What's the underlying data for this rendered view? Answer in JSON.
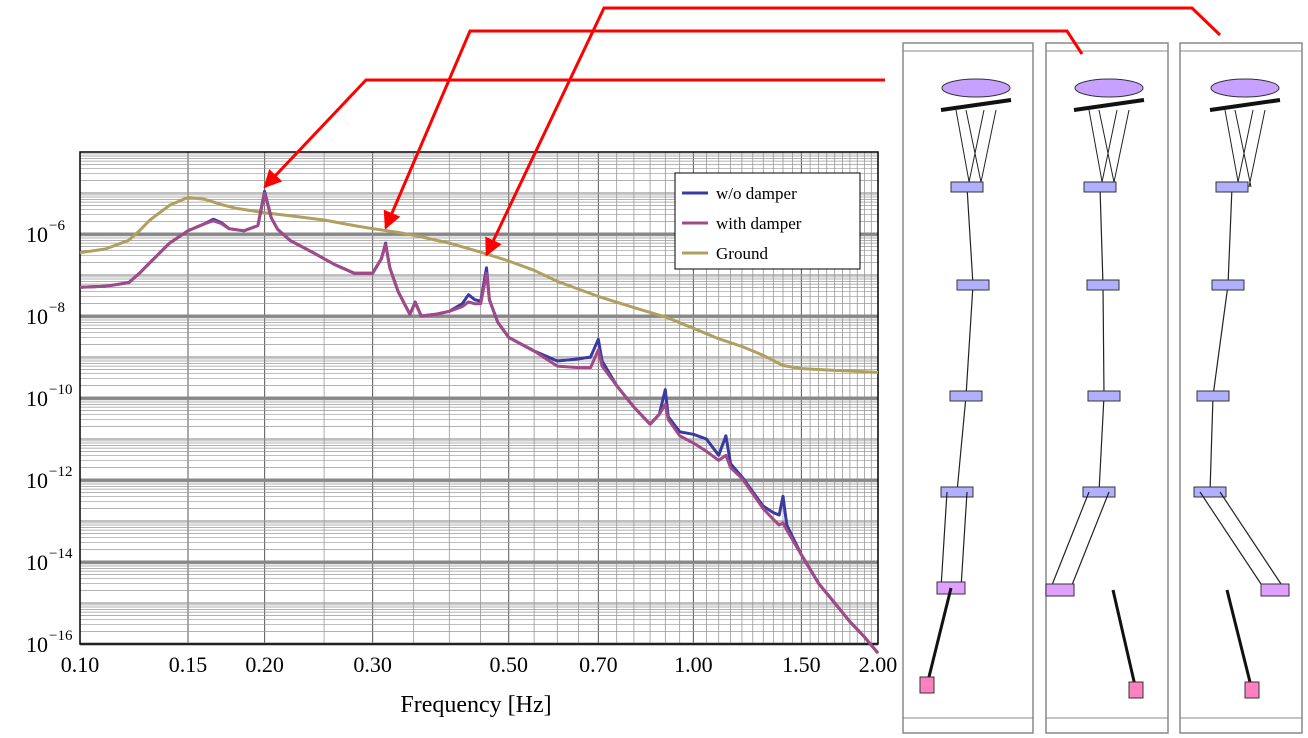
{
  "chart_data": {
    "type": "line",
    "title": "",
    "xlabel": "Frequency [Hz]",
    "ylabel": "",
    "x_scale": "log",
    "y_scale": "log",
    "xlim": [
      0.1,
      2.0
    ],
    "ylim": [
      1e-16,
      0.0001
    ],
    "grid": true,
    "legend_position": "top-right",
    "x_ticks": [
      {
        "value": 0.1,
        "label": "0.10"
      },
      {
        "value": 0.15,
        "label": "0.15"
      },
      {
        "value": 0.2,
        "label": "0.20"
      },
      {
        "value": 0.3,
        "label": "0.30"
      },
      {
        "value": 0.5,
        "label": "0.50"
      },
      {
        "value": 0.7,
        "label": "0.70"
      },
      {
        "value": 1.0,
        "label": "1.00"
      },
      {
        "value": 1.5,
        "label": "1.50"
      },
      {
        "value": 2.0,
        "label": "2.00"
      }
    ],
    "y_ticks": [
      {
        "value": 1e-06,
        "base": "10",
        "exp": "−6"
      },
      {
        "value": 1e-08,
        "base": "10",
        "exp": "−8"
      },
      {
        "value": 1e-10,
        "base": "10",
        "exp": "−10"
      },
      {
        "value": 1e-12,
        "base": "10",
        "exp": "−12"
      },
      {
        "value": 1e-14,
        "base": "10",
        "exp": "−14"
      },
      {
        "value": 1e-16,
        "base": "10",
        "exp": "−16"
      }
    ],
    "series": [
      {
        "name": "Ground",
        "color": "#b0a060",
        "points": [
          [
            0.1,
            3.5e-07
          ],
          [
            0.11,
            4.3e-07
          ],
          [
            0.12,
            7e-07
          ],
          [
            0.125,
            1.2e-06
          ],
          [
            0.13,
            2.2e-06
          ],
          [
            0.14,
            5e-06
          ],
          [
            0.15,
            7.8e-06
          ],
          [
            0.16,
            7e-06
          ],
          [
            0.17,
            5.2e-06
          ],
          [
            0.18,
            4.2e-06
          ],
          [
            0.2,
            3.3e-06
          ],
          [
            0.22,
            2.8e-06
          ],
          [
            0.25,
            2.2e-06
          ],
          [
            0.28,
            1.6e-06
          ],
          [
            0.3,
            1.35e-06
          ],
          [
            0.33,
            1.1e-06
          ],
          [
            0.36,
            8.5e-07
          ],
          [
            0.4,
            6e-07
          ],
          [
            0.45,
            3.6e-07
          ],
          [
            0.5,
            2.2e-07
          ],
          [
            0.55,
            1.3e-07
          ],
          [
            0.6,
            7e-08
          ],
          [
            0.7,
            3e-08
          ],
          [
            0.8,
            1.6e-08
          ],
          [
            0.9,
            9.5e-09
          ],
          [
            1.0,
            5e-09
          ],
          [
            1.1,
            2.8e-09
          ],
          [
            1.2,
            1.8e-09
          ],
          [
            1.3,
            1.1e-09
          ],
          [
            1.4,
            6.2e-10
          ],
          [
            1.5,
            5.2e-10
          ],
          [
            1.7,
            4.7e-10
          ],
          [
            2.0,
            4.2e-10
          ]
        ]
      },
      {
        "name": "w/o damper",
        "color": "#3a3aa0",
        "points": [
          [
            0.1,
            5e-08
          ],
          [
            0.11,
            5.3e-08
          ],
          [
            0.12,
            6.5e-08
          ],
          [
            0.125,
            1.1e-07
          ],
          [
            0.13,
            2e-07
          ],
          [
            0.14,
            6e-07
          ],
          [
            0.15,
            1.2e-06
          ],
          [
            0.16,
            1.8e-06
          ],
          [
            0.165,
            2.3e-06
          ],
          [
            0.17,
            1.9e-06
          ],
          [
            0.175,
            1.35e-06
          ],
          [
            0.185,
            1.2e-06
          ],
          [
            0.195,
            1.6e-06
          ],
          [
            0.2,
            1.1e-05
          ],
          [
            0.205,
            2.5e-06
          ],
          [
            0.21,
            1.3e-06
          ],
          [
            0.22,
            7e-07
          ],
          [
            0.24,
            3.5e-07
          ],
          [
            0.26,
            1.8e-07
          ],
          [
            0.28,
            1.1e-07
          ],
          [
            0.3,
            1.1e-07
          ],
          [
            0.31,
            2.5e-07
          ],
          [
            0.315,
            6e-07
          ],
          [
            0.32,
            1.5e-07
          ],
          [
            0.33,
            4e-08
          ],
          [
            0.345,
            1.1e-08
          ],
          [
            0.352,
            2.2e-08
          ],
          [
            0.36,
            1e-08
          ],
          [
            0.38,
            1.1e-08
          ],
          [
            0.4,
            1.3e-08
          ],
          [
            0.42,
            2e-08
          ],
          [
            0.43,
            3.3e-08
          ],
          [
            0.44,
            2.5e-08
          ],
          [
            0.45,
            2.3e-08
          ],
          [
            0.46,
            1.5e-07
          ],
          [
            0.465,
            2.5e-08
          ],
          [
            0.48,
            7e-09
          ],
          [
            0.5,
            3e-09
          ],
          [
            0.55,
            1.4e-09
          ],
          [
            0.6,
            8e-10
          ],
          [
            0.65,
            9e-10
          ],
          [
            0.68,
            1e-09
          ],
          [
            0.7,
            2.7e-09
          ],
          [
            0.71,
            8e-10
          ],
          [
            0.75,
            2e-10
          ],
          [
            0.8,
            6e-11
          ],
          [
            0.85,
            2.3e-11
          ],
          [
            0.88,
            4e-11
          ],
          [
            0.9,
            1.6e-10
          ],
          [
            0.91,
            3.5e-11
          ],
          [
            0.95,
            1.5e-11
          ],
          [
            1.0,
            1.3e-11
          ],
          [
            1.05,
            1e-11
          ],
          [
            1.1,
            4e-12
          ],
          [
            1.13,
            1.2e-11
          ],
          [
            1.15,
            2.5e-12
          ],
          [
            1.2,
            1.2e-12
          ],
          [
            1.3,
            2.3e-13
          ],
          [
            1.35,
            1.6e-13
          ],
          [
            1.38,
            1.4e-13
          ],
          [
            1.4,
            4e-13
          ],
          [
            1.42,
            8e-14
          ],
          [
            1.5,
            1.5e-14
          ],
          [
            1.6,
            3e-15
          ],
          [
            1.7,
            1e-15
          ],
          [
            1.8,
            3.5e-16
          ],
          [
            1.9,
            1.5e-16
          ],
          [
            2.0,
            6e-17
          ]
        ]
      },
      {
        "name": "with damper",
        "color": "#a04a88",
        "points": [
          [
            0.1,
            5e-08
          ],
          [
            0.11,
            5.3e-08
          ],
          [
            0.12,
            6.5e-08
          ],
          [
            0.125,
            1.1e-07
          ],
          [
            0.13,
            2e-07
          ],
          [
            0.14,
            6e-07
          ],
          [
            0.15,
            1.2e-06
          ],
          [
            0.16,
            1.8e-06
          ],
          [
            0.165,
            2.1e-06
          ],
          [
            0.17,
            1.8e-06
          ],
          [
            0.175,
            1.35e-06
          ],
          [
            0.185,
            1.2e-06
          ],
          [
            0.195,
            1.6e-06
          ],
          [
            0.2,
            1e-05
          ],
          [
            0.205,
            2.5e-06
          ],
          [
            0.21,
            1.3e-06
          ],
          [
            0.22,
            7e-07
          ],
          [
            0.24,
            3.5e-07
          ],
          [
            0.26,
            1.8e-07
          ],
          [
            0.28,
            1.1e-07
          ],
          [
            0.3,
            1.1e-07
          ],
          [
            0.31,
            2.5e-07
          ],
          [
            0.315,
            5.5e-07
          ],
          [
            0.32,
            1.5e-07
          ],
          [
            0.33,
            4e-08
          ],
          [
            0.345,
            1.1e-08
          ],
          [
            0.352,
            2.1e-08
          ],
          [
            0.36,
            1e-08
          ],
          [
            0.38,
            1.1e-08
          ],
          [
            0.4,
            1.3e-08
          ],
          [
            0.42,
            1.7e-08
          ],
          [
            0.43,
            2.2e-08
          ],
          [
            0.44,
            2e-08
          ],
          [
            0.45,
            2e-08
          ],
          [
            0.46,
            1.1e-07
          ],
          [
            0.465,
            2.5e-08
          ],
          [
            0.48,
            7e-09
          ],
          [
            0.5,
            3e-09
          ],
          [
            0.55,
            1.4e-09
          ],
          [
            0.6,
            6e-10
          ],
          [
            0.65,
            5.5e-10
          ],
          [
            0.68,
            5.5e-10
          ],
          [
            0.7,
            1.5e-09
          ],
          [
            0.71,
            6e-10
          ],
          [
            0.75,
            2e-10
          ],
          [
            0.8,
            6e-11
          ],
          [
            0.85,
            2.3e-11
          ],
          [
            0.88,
            4e-11
          ],
          [
            0.9,
            7e-11
          ],
          [
            0.91,
            3e-11
          ],
          [
            0.95,
            1.2e-11
          ],
          [
            1.0,
            8e-12
          ],
          [
            1.05,
            5e-12
          ],
          [
            1.1,
            3e-12
          ],
          [
            1.13,
            4e-12
          ],
          [
            1.15,
            2e-12
          ],
          [
            1.2,
            1.1e-12
          ],
          [
            1.3,
            2e-13
          ],
          [
            1.35,
            1.1e-13
          ],
          [
            1.38,
            8e-14
          ],
          [
            1.4,
            9e-14
          ],
          [
            1.42,
            6e-14
          ],
          [
            1.5,
            1.5e-14
          ],
          [
            1.6,
            3e-15
          ],
          [
            1.7,
            1e-15
          ],
          [
            1.8,
            3.5e-16
          ],
          [
            1.9,
            1.5e-16
          ],
          [
            2.0,
            6e-17
          ]
        ]
      }
    ],
    "legend": [
      {
        "label": "w/o damper",
        "color": "#3a3aa0"
      },
      {
        "label": "with damper",
        "color": "#a04a88"
      },
      {
        "label": "Ground",
        "color": "#b0a060"
      }
    ],
    "annotations": [
      {
        "type": "arrow",
        "color": "#ff0000",
        "points_to_x": 0.2,
        "points_to_y": 1e-05,
        "target_panel": 1
      },
      {
        "type": "arrow",
        "color": "#ff0000",
        "points_to_x": 0.315,
        "points_to_y": 1e-06,
        "target_panel": 2
      },
      {
        "type": "arrow",
        "color": "#ff0000",
        "points_to_x": 0.46,
        "points_to_y": 2.2e-07,
        "target_panel": 3
      }
    ]
  },
  "mode_shape_panels": [
    {
      "mode": 1
    },
    {
      "mode": 2
    },
    {
      "mode": 3
    }
  ]
}
